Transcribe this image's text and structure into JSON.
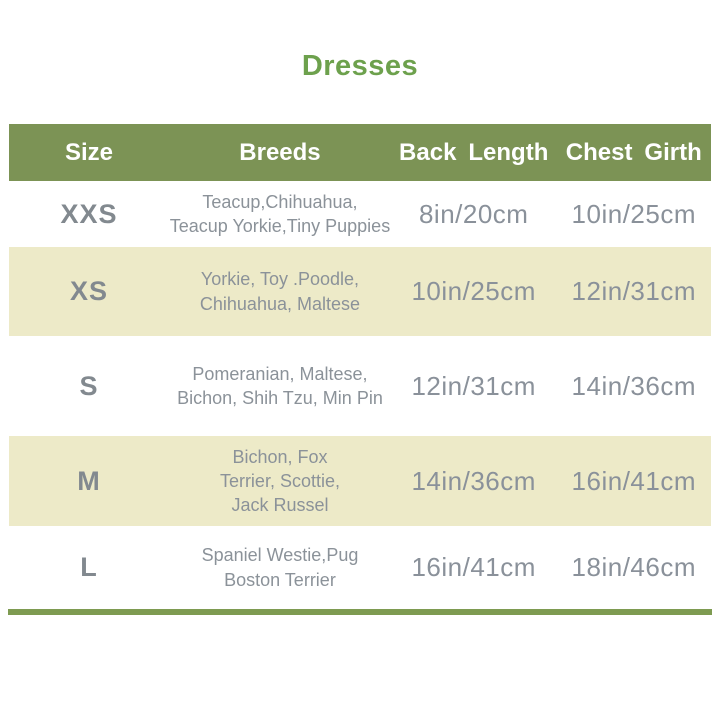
{
  "page": {
    "title": "Dresses"
  },
  "table": {
    "headers": [
      "Size",
      "Breeds",
      "Back Length",
      "Chest Girth"
    ],
    "rows": [
      {
        "size": "XXS",
        "breeds": [
          "Teacup,Chihuahua,",
          "Teacup Yorkie,Tiny Puppies"
        ],
        "back_length": "8in/20cm",
        "chest_girth": "10in/25cm"
      },
      {
        "size": "XS",
        "breeds": [
          "Yorkie, Toy .Poodle,",
          "Chihuahua, Maltese"
        ],
        "back_length": "10in/25cm",
        "chest_girth": "12in/31cm"
      },
      {
        "size": "S",
        "breeds": [
          "Pomeranian, Maltese,",
          "Bichon, Shih Tzu, Min Pin"
        ],
        "back_length": "12in/31cm",
        "chest_girth": "14in/36cm"
      },
      {
        "size": "M",
        "breeds": [
          "Bichon, Fox",
          "Terrier, Scottie,",
          "Jack Russel"
        ],
        "back_length": "14in/36cm",
        "chest_girth": "16in/41cm"
      },
      {
        "size": "L",
        "breeds": [
          "Spaniel Westie,Pug",
          "Boston Terrier"
        ],
        "back_length": "16in/41cm",
        "chest_girth": "18in/46cm"
      }
    ]
  },
  "colors": {
    "title_text": "#6da14d",
    "header_bg": "#7c9355",
    "header_text": "#ffffff",
    "row_bg": "#ffffff",
    "row_alt_bg": "#edeac8",
    "size_text": "#82898f",
    "breed_text": "#8b9299",
    "measure_text": "#8a919a",
    "bottom_bar": "#7e9b51"
  }
}
